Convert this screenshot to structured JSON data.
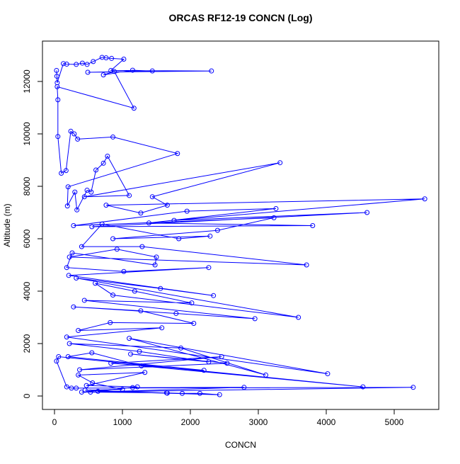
{
  "chart_data": {
    "type": "line",
    "title": "ORCAS RF12-19 CONCN (Log)",
    "x_label": "CONCN",
    "y_label": "Altitude (m)",
    "color": "#0000ff",
    "marker": "circle",
    "x": [
      30,
      35,
      40,
      130,
      180,
      320,
      410,
      480,
      570,
      700,
      760,
      840,
      1020,
      830,
      2310,
      490,
      1440,
      1150,
      720,
      880,
      1170,
      40,
      50,
      50,
      100,
      170,
      240,
      290,
      340,
      860,
      1810,
      200,
      190,
      300,
      330,
      480,
      540,
      610,
      720,
      780,
      1100,
      440,
      3320,
      1440,
      1660,
      1270,
      760,
      5450,
      1760,
      4600,
      550,
      3800,
      1390,
      3260,
      1950,
      280,
      3230,
      2400,
      860,
      2290,
      1830,
      700,
      400,
      1290,
      3710,
      220,
      920,
      1500,
      1480,
      260,
      180,
      1020,
      2270,
      210,
      2340,
      1560,
      320,
      3590,
      860,
      600,
      1180,
      2020,
      440,
      2950,
      1790,
      280,
      1270,
      2050,
      820,
      350,
      1580,
      180,
      4020,
      1100,
      3110,
      1860,
      220,
      1250,
      2270,
      1120,
      2540,
      370,
      2460,
      830,
      2200,
      200,
      550,
      1280,
      4540,
      60,
      30,
      180,
      250,
      320,
      5280,
      400,
      1150,
      2790,
      530,
      1650,
      1880,
      2140,
      2430,
      640,
      1220,
      470,
      1330,
      350,
      560,
      1000,
      450,
      1660
    ],
    "values": [
      12420,
      12200,
      11950,
      12680,
      12660,
      12650,
      12700,
      12650,
      12760,
      12920,
      12900,
      12880,
      12850,
      12420,
      12400,
      12350,
      12400,
      12430,
      12250,
      12380,
      10980,
      11800,
      11300,
      9900,
      8500,
      8600,
      10100,
      10000,
      9800,
      9880,
      9250,
      7980,
      7250,
      7780,
      7100,
      7850,
      7780,
      8620,
      8880,
      9150,
      7650,
      7600,
      8900,
      7600,
      7280,
      6980,
      7280,
      7520,
      6700,
      7000,
      6460,
      6500,
      6600,
      7150,
      7050,
      6500,
      6800,
      6320,
      6000,
      6100,
      6000,
      6560,
      5700,
      5700,
      5000,
      5300,
      5600,
      5300,
      5000,
      5460,
      4900,
      4750,
      4900,
      4600,
      3830,
      4100,
      4500,
      3000,
      3850,
      4300,
      4000,
      3550,
      3650,
      2950,
      3150,
      3400,
      3250,
      2770,
      2800,
      2500,
      2600,
      2250,
      850,
      2200,
      800,
      1830,
      2000,
      1700,
      1300,
      1600,
      1250,
      1000,
      1500,
      1250,
      980,
      1500,
      1650,
      1150,
      350,
      1500,
      1330,
      350,
      300,
      300,
      330,
      150,
      320,
      330,
      150,
      120,
      100,
      100,
      50,
      180,
      350,
      400,
      900,
      800,
      500,
      250,
      220,
      110
    ],
    "xlim": [
      -177,
      5656
    ],
    "ylim": [
      -513,
      13540
    ],
    "xticks": [
      0,
      1000,
      2000,
      3000,
      4000,
      5000
    ],
    "yticks": [
      0,
      2000,
      4000,
      6000,
      8000,
      10000,
      12000
    ]
  }
}
